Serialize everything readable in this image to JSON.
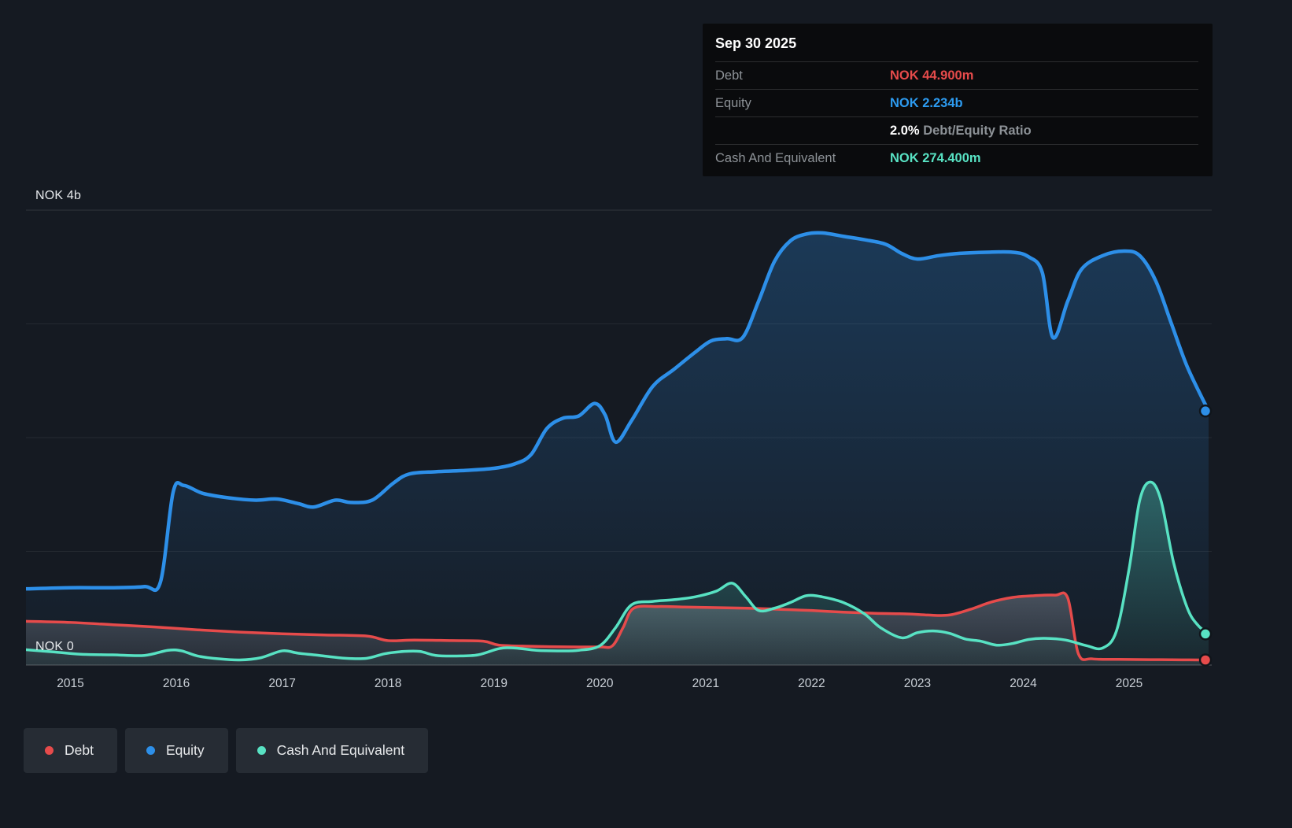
{
  "tooltip": {
    "date": "Sep 30 2025",
    "debt": {
      "label": "Debt",
      "value": "NOK 44.900m",
      "color": "#e64b4b"
    },
    "equity": {
      "label": "Equity",
      "value": "NOK 2.234b",
      "color": "#2d9bf0"
    },
    "ratio": {
      "value": "2.0%",
      "label": "Debt/Equity Ratio"
    },
    "cash": {
      "label": "Cash And Equivalent",
      "value": "NOK 274.400m",
      "color": "#58e2c3"
    }
  },
  "axis": {
    "y_top": "NOK 4b",
    "y_zero": "NOK 0"
  },
  "legend": {
    "items": [
      {
        "label": "Debt",
        "color": "#e64b4b"
      },
      {
        "label": "Equity",
        "color": "#2d8fe8"
      },
      {
        "label": "Cash And Equivalent",
        "color": "#58e2c3"
      }
    ]
  },
  "chart_data": {
    "type": "area",
    "y_label": "NOK",
    "y_unit": "NOK billions",
    "x_range": [
      2014.58,
      2025.78
    ],
    "y_range": [
      0,
      4
    ],
    "grid": "horizontal",
    "legend_position": "bottom-left",
    "x_ticks": [
      2015,
      2016,
      2017,
      2018,
      2019,
      2020,
      2021,
      2022,
      2023,
      2024,
      2025
    ],
    "series": [
      {
        "name": "Equity",
        "color": "#2d8fe8",
        "points": [
          [
            2014.58,
            0.67
          ],
          [
            2015.0,
            0.68
          ],
          [
            2015.4,
            0.68
          ],
          [
            2015.7,
            0.69
          ],
          [
            2015.85,
            0.73
          ],
          [
            2015.97,
            1.52
          ],
          [
            2016.07,
            1.58
          ],
          [
            2016.25,
            1.51
          ],
          [
            2016.5,
            1.47
          ],
          [
            2016.75,
            1.45
          ],
          [
            2016.95,
            1.46
          ],
          [
            2017.15,
            1.42
          ],
          [
            2017.3,
            1.39
          ],
          [
            2017.5,
            1.45
          ],
          [
            2017.65,
            1.43
          ],
          [
            2017.85,
            1.45
          ],
          [
            2018.05,
            1.6
          ],
          [
            2018.2,
            1.68
          ],
          [
            2018.45,
            1.7
          ],
          [
            2018.7,
            1.71
          ],
          [
            2019.0,
            1.73
          ],
          [
            2019.2,
            1.77
          ],
          [
            2019.35,
            1.85
          ],
          [
            2019.5,
            2.08
          ],
          [
            2019.65,
            2.17
          ],
          [
            2019.8,
            2.19
          ],
          [
            2019.95,
            2.3
          ],
          [
            2020.05,
            2.2
          ],
          [
            2020.15,
            1.96
          ],
          [
            2020.3,
            2.15
          ],
          [
            2020.5,
            2.45
          ],
          [
            2020.7,
            2.6
          ],
          [
            2020.9,
            2.75
          ],
          [
            2021.05,
            2.85
          ],
          [
            2021.2,
            2.87
          ],
          [
            2021.35,
            2.88
          ],
          [
            2021.5,
            3.2
          ],
          [
            2021.65,
            3.55
          ],
          [
            2021.8,
            3.73
          ],
          [
            2021.95,
            3.79
          ],
          [
            2022.1,
            3.8
          ],
          [
            2022.3,
            3.77
          ],
          [
            2022.5,
            3.74
          ],
          [
            2022.7,
            3.7
          ],
          [
            2022.85,
            3.62
          ],
          [
            2023.0,
            3.57
          ],
          [
            2023.2,
            3.6
          ],
          [
            2023.4,
            3.62
          ],
          [
            2023.65,
            3.63
          ],
          [
            2023.9,
            3.63
          ],
          [
            2024.05,
            3.59
          ],
          [
            2024.18,
            3.45
          ],
          [
            2024.28,
            2.88
          ],
          [
            2024.42,
            3.2
          ],
          [
            2024.55,
            3.48
          ],
          [
            2024.75,
            3.6
          ],
          [
            2024.95,
            3.64
          ],
          [
            2025.1,
            3.6
          ],
          [
            2025.25,
            3.38
          ],
          [
            2025.4,
            3.0
          ],
          [
            2025.55,
            2.62
          ],
          [
            2025.75,
            2.234
          ]
        ]
      },
      {
        "name": "Debt",
        "color": "#e64b4b",
        "points": [
          [
            2014.58,
            0.385
          ],
          [
            2015.0,
            0.375
          ],
          [
            2015.4,
            0.355
          ],
          [
            2015.8,
            0.335
          ],
          [
            2016.2,
            0.31
          ],
          [
            2016.6,
            0.29
          ],
          [
            2017.0,
            0.275
          ],
          [
            2017.4,
            0.265
          ],
          [
            2017.8,
            0.255
          ],
          [
            2018.0,
            0.215
          ],
          [
            2018.25,
            0.22
          ],
          [
            2018.6,
            0.215
          ],
          [
            2018.9,
            0.21
          ],
          [
            2019.05,
            0.175
          ],
          [
            2019.35,
            0.165
          ],
          [
            2019.7,
            0.16
          ],
          [
            2020.0,
            0.16
          ],
          [
            2020.12,
            0.17
          ],
          [
            2020.22,
            0.33
          ],
          [
            2020.32,
            0.5
          ],
          [
            2020.55,
            0.515
          ],
          [
            2020.8,
            0.51
          ],
          [
            2021.1,
            0.505
          ],
          [
            2021.4,
            0.5
          ],
          [
            2021.7,
            0.49
          ],
          [
            2022.0,
            0.48
          ],
          [
            2022.3,
            0.465
          ],
          [
            2022.6,
            0.455
          ],
          [
            2022.9,
            0.45
          ],
          [
            2023.1,
            0.44
          ],
          [
            2023.3,
            0.44
          ],
          [
            2023.5,
            0.49
          ],
          [
            2023.7,
            0.555
          ],
          [
            2023.9,
            0.595
          ],
          [
            2024.1,
            0.61
          ],
          [
            2024.3,
            0.615
          ],
          [
            2024.42,
            0.59
          ],
          [
            2024.52,
            0.1
          ],
          [
            2024.65,
            0.055
          ],
          [
            2024.9,
            0.05
          ],
          [
            2025.2,
            0.048
          ],
          [
            2025.5,
            0.046
          ],
          [
            2025.75,
            0.045
          ]
        ]
      },
      {
        "name": "Cash And Equivalent",
        "color": "#58e2c3",
        "points": [
          [
            2014.58,
            0.135
          ],
          [
            2014.85,
            0.115
          ],
          [
            2015.1,
            0.095
          ],
          [
            2015.4,
            0.09
          ],
          [
            2015.7,
            0.085
          ],
          [
            2015.92,
            0.13
          ],
          [
            2016.05,
            0.125
          ],
          [
            2016.2,
            0.08
          ],
          [
            2016.4,
            0.055
          ],
          [
            2016.6,
            0.045
          ],
          [
            2016.8,
            0.065
          ],
          [
            2017.0,
            0.125
          ],
          [
            2017.15,
            0.105
          ],
          [
            2017.35,
            0.085
          ],
          [
            2017.6,
            0.06
          ],
          [
            2017.8,
            0.06
          ],
          [
            2017.97,
            0.1
          ],
          [
            2018.15,
            0.12
          ],
          [
            2018.3,
            0.12
          ],
          [
            2018.45,
            0.085
          ],
          [
            2018.65,
            0.08
          ],
          [
            2018.85,
            0.09
          ],
          [
            2019.05,
            0.145
          ],
          [
            2019.2,
            0.15
          ],
          [
            2019.4,
            0.13
          ],
          [
            2019.6,
            0.125
          ],
          [
            2019.8,
            0.13
          ],
          [
            2020.0,
            0.17
          ],
          [
            2020.15,
            0.33
          ],
          [
            2020.3,
            0.53
          ],
          [
            2020.5,
            0.56
          ],
          [
            2020.7,
            0.575
          ],
          [
            2020.9,
            0.6
          ],
          [
            2021.1,
            0.65
          ],
          [
            2021.25,
            0.72
          ],
          [
            2021.38,
            0.6
          ],
          [
            2021.5,
            0.48
          ],
          [
            2021.65,
            0.5
          ],
          [
            2021.8,
            0.55
          ],
          [
            2021.95,
            0.61
          ],
          [
            2022.1,
            0.6
          ],
          [
            2022.3,
            0.55
          ],
          [
            2022.5,
            0.45
          ],
          [
            2022.65,
            0.33
          ],
          [
            2022.85,
            0.24
          ],
          [
            2023.0,
            0.285
          ],
          [
            2023.15,
            0.3
          ],
          [
            2023.3,
            0.28
          ],
          [
            2023.45,
            0.23
          ],
          [
            2023.6,
            0.21
          ],
          [
            2023.75,
            0.175
          ],
          [
            2023.9,
            0.19
          ],
          [
            2024.05,
            0.225
          ],
          [
            2024.2,
            0.235
          ],
          [
            2024.4,
            0.22
          ],
          [
            2024.6,
            0.17
          ],
          [
            2024.75,
            0.15
          ],
          [
            2024.88,
            0.3
          ],
          [
            2025.0,
            0.85
          ],
          [
            2025.1,
            1.45
          ],
          [
            2025.2,
            1.61
          ],
          [
            2025.3,
            1.45
          ],
          [
            2025.42,
            0.9
          ],
          [
            2025.55,
            0.5
          ],
          [
            2025.65,
            0.35
          ],
          [
            2025.75,
            0.274
          ]
        ]
      }
    ]
  }
}
